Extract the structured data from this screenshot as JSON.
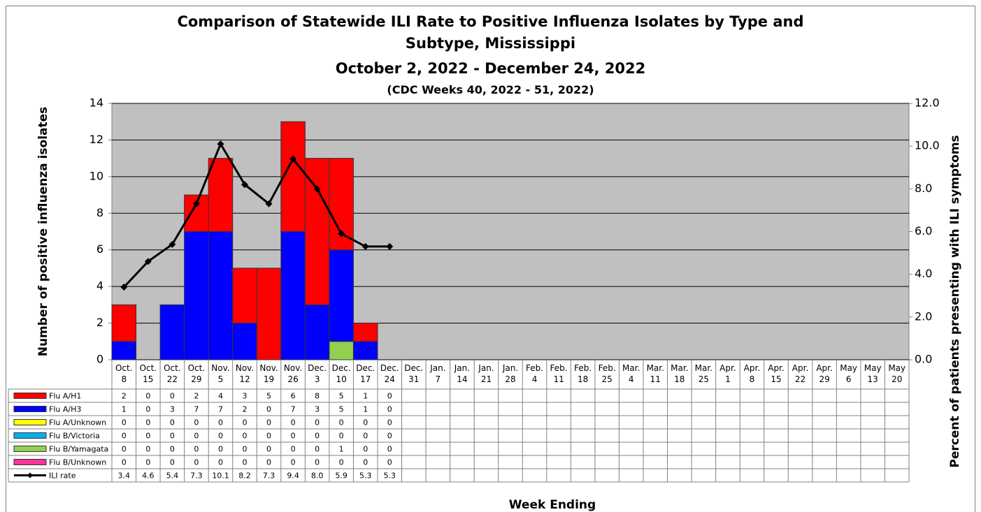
{
  "chart_data": {
    "type": "bar",
    "title": "Comparison of Statewide ILI Rate to Positive Influenza Isolates by Type and Subtype, Mississippi",
    "subtitle": "October 2, 2022 - December 24, 2022",
    "subtitle2": "(CDC Weeks 40, 2022 - 51, 2022)",
    "x_label": "Week Ending",
    "y_label": "Number of positive influenza isolates",
    "y2_label": "Percent of patients presenting with ILI symptoms",
    "stacked": true,
    "plot_background": "#c0c0c0",
    "categories": [
      "Oct. 8",
      "Oct. 15",
      "Oct. 22",
      "Oct. 29",
      "Nov. 5",
      "Nov. 12",
      "Nov. 19",
      "Nov. 26",
      "Dec. 3",
      "Dec. 10",
      "Dec. 17",
      "Dec. 24",
      "Dec. 31",
      "Jan. 7",
      "Jan. 14",
      "Jan. 21",
      "Jan. 28",
      "Feb. 4",
      "Feb. 11",
      "Feb. 18",
      "Feb. 25",
      "Mar. 4",
      "Mar. 11",
      "Mar. 18",
      "Mar. 25",
      "Apr. 1",
      "Apr. 8",
      "Apr. 15",
      "Apr. 22",
      "Apr. 29",
      "May 6",
      "May 13",
      "May 20"
    ],
    "series": [
      {
        "name": "Flu A/H1",
        "color": "#ff0000",
        "values": [
          2,
          0,
          0,
          2,
          4,
          3,
          5,
          6,
          8,
          5,
          1,
          0,
          null,
          null,
          null,
          null,
          null,
          null,
          null,
          null,
          null,
          null,
          null,
          null,
          null,
          null,
          null,
          null,
          null,
          null,
          null,
          null,
          null
        ]
      },
      {
        "name": "Flu A/H3",
        "color": "#0000ff",
        "values": [
          1,
          0,
          3,
          7,
          7,
          2,
          0,
          7,
          3,
          5,
          1,
          0,
          null,
          null,
          null,
          null,
          null,
          null,
          null,
          null,
          null,
          null,
          null,
          null,
          null,
          null,
          null,
          null,
          null,
          null,
          null,
          null,
          null
        ]
      },
      {
        "name": "Flu A/Unknown",
        "color": "#ffff00",
        "values": [
          0,
          0,
          0,
          0,
          0,
          0,
          0,
          0,
          0,
          0,
          0,
          0,
          null,
          null,
          null,
          null,
          null,
          null,
          null,
          null,
          null,
          null,
          null,
          null,
          null,
          null,
          null,
          null,
          null,
          null,
          null,
          null,
          null
        ]
      },
      {
        "name": "Flu B/Victoria",
        "color": "#00b0f0",
        "values": [
          0,
          0,
          0,
          0,
          0,
          0,
          0,
          0,
          0,
          0,
          0,
          0,
          null,
          null,
          null,
          null,
          null,
          null,
          null,
          null,
          null,
          null,
          null,
          null,
          null,
          null,
          null,
          null,
          null,
          null,
          null,
          null,
          null
        ]
      },
      {
        "name": "Flu B/Yamagata",
        "color": "#92d050",
        "values": [
          0,
          0,
          0,
          0,
          0,
          0,
          0,
          0,
          0,
          1,
          0,
          0,
          null,
          null,
          null,
          null,
          null,
          null,
          null,
          null,
          null,
          null,
          null,
          null,
          null,
          null,
          null,
          null,
          null,
          null,
          null,
          null,
          null
        ]
      },
      {
        "name": "Flu B/Unknown",
        "color": "#ff3399",
        "values": [
          0,
          0,
          0,
          0,
          0,
          0,
          0,
          0,
          0,
          0,
          0,
          0,
          null,
          null,
          null,
          null,
          null,
          null,
          null,
          null,
          null,
          null,
          null,
          null,
          null,
          null,
          null,
          null,
          null,
          null,
          null,
          null,
          null
        ]
      },
      {
        "name": "ILI rate",
        "color": "#000000",
        "type": "line",
        "axis": "y2",
        "values": [
          3.4,
          4.6,
          5.4,
          7.3,
          10.1,
          8.2,
          7.3,
          9.4,
          8.0,
          5.9,
          5.3,
          5.3,
          null,
          null,
          null,
          null,
          null,
          null,
          null,
          null,
          null,
          null,
          null,
          null,
          null,
          null,
          null,
          null,
          null,
          null,
          null,
          null,
          null
        ],
        "value_labels": [
          "3.4",
          "4.6",
          "5.4",
          "7.3",
          "10.1",
          "8.2",
          "7.3",
          "9.4",
          "8.0",
          "5.9",
          "5.3",
          "5.3",
          null,
          null,
          null,
          null,
          null,
          null,
          null,
          null,
          null,
          null,
          null,
          null,
          null,
          null,
          null,
          null,
          null,
          null,
          null,
          null,
          null
        ]
      }
    ],
    "ylim": [
      0,
      14
    ],
    "yticks": [
      0,
      2,
      4,
      6,
      8,
      10,
      12,
      14
    ],
    "y2lim": [
      0,
      12
    ],
    "y2ticks": [
      {
        "value": 0,
        "label": "0.0"
      },
      {
        "value": 2,
        "label": "2.0"
      },
      {
        "value": 4,
        "label": "4.0"
      },
      {
        "value": 6,
        "label": "6.0"
      },
      {
        "value": 8,
        "label": "8.0"
      },
      {
        "value": 10,
        "label": "10.0"
      },
      {
        "value": 12,
        "label": "12.0"
      }
    ],
    "grid": true
  }
}
